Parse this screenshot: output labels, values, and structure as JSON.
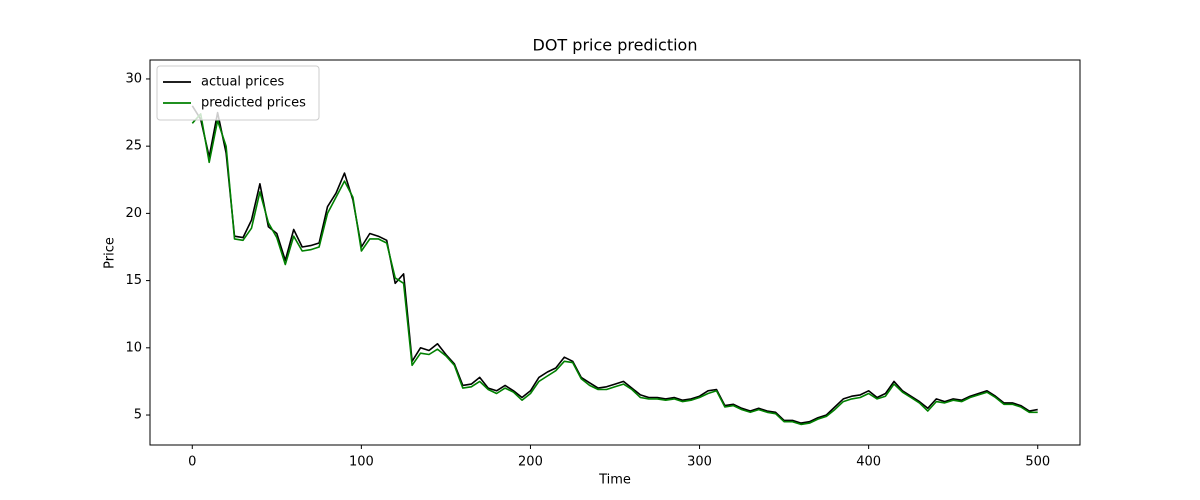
{
  "chart_data": {
    "type": "line",
    "title": "DOT price prediction",
    "x_label": "Time",
    "y_label": "Price",
    "x": [
      0,
      5,
      10,
      15,
      20,
      25,
      30,
      35,
      40,
      45,
      50,
      55,
      60,
      65,
      70,
      75,
      80,
      85,
      90,
      95,
      100,
      105,
      110,
      115,
      120,
      125,
      130,
      135,
      140,
      145,
      150,
      155,
      160,
      165,
      170,
      175,
      180,
      185,
      190,
      195,
      200,
      205,
      210,
      215,
      220,
      225,
      230,
      235,
      240,
      245,
      250,
      255,
      260,
      265,
      270,
      275,
      280,
      285,
      290,
      295,
      300,
      305,
      310,
      315,
      320,
      325,
      330,
      335,
      340,
      345,
      350,
      355,
      360,
      365,
      370,
      375,
      380,
      385,
      390,
      395,
      400,
      405,
      410,
      415,
      420,
      425,
      430,
      435,
      440,
      445,
      450,
      455,
      460,
      465,
      470,
      475,
      480,
      485,
      490,
      495,
      500
    ],
    "series": [
      {
        "name": "actual prices",
        "color": "#000000",
        "values": [
          28.0,
          27.0,
          24.2,
          27.5,
          24.5,
          18.3,
          18.2,
          19.5,
          22.2,
          19.0,
          18.5,
          16.5,
          18.8,
          17.5,
          17.6,
          17.8,
          20.5,
          21.5,
          23.0,
          21.0,
          17.5,
          18.5,
          18.3,
          18.0,
          14.8,
          15.5,
          9.0,
          10.0,
          9.8,
          10.3,
          9.5,
          8.8,
          7.2,
          7.3,
          7.8,
          7.0,
          6.8,
          7.2,
          6.8,
          6.3,
          6.8,
          7.8,
          8.2,
          8.5,
          9.3,
          9.0,
          7.8,
          7.4,
          7.0,
          7.1,
          7.3,
          7.5,
          7.0,
          6.5,
          6.3,
          6.3,
          6.2,
          6.3,
          6.1,
          6.2,
          6.4,
          6.8,
          6.9,
          5.7,
          5.8,
          5.5,
          5.3,
          5.5,
          5.3,
          5.2,
          4.6,
          4.6,
          4.4,
          4.5,
          4.8,
          5.0,
          5.6,
          6.2,
          6.4,
          6.5,
          6.8,
          6.3,
          6.6,
          7.5,
          6.8,
          6.4,
          6.0,
          5.5,
          6.2,
          6.0,
          6.2,
          6.1,
          6.4,
          6.6,
          6.8,
          6.4,
          5.9,
          5.9,
          5.7,
          5.3,
          5.4
        ]
      },
      {
        "name": "predicted prices",
        "color": "#008000",
        "values": [
          26.7,
          27.4,
          23.8,
          26.9,
          25.0,
          18.1,
          18.0,
          18.9,
          21.6,
          19.3,
          18.2,
          16.2,
          18.3,
          17.2,
          17.3,
          17.5,
          20.0,
          21.2,
          22.4,
          21.2,
          17.2,
          18.1,
          18.1,
          17.8,
          15.2,
          14.8,
          8.7,
          9.6,
          9.5,
          9.9,
          9.4,
          8.7,
          7.0,
          7.1,
          7.5,
          6.9,
          6.6,
          7.0,
          6.7,
          6.1,
          6.6,
          7.5,
          7.9,
          8.3,
          9.0,
          8.9,
          7.7,
          7.2,
          6.9,
          6.9,
          7.1,
          7.3,
          6.9,
          6.3,
          6.2,
          6.2,
          6.1,
          6.2,
          6.0,
          6.1,
          6.3,
          6.6,
          6.8,
          5.6,
          5.7,
          5.4,
          5.2,
          5.4,
          5.2,
          5.1,
          4.5,
          4.5,
          4.3,
          4.4,
          4.7,
          4.9,
          5.4,
          6.0,
          6.2,
          6.3,
          6.6,
          6.2,
          6.4,
          7.3,
          6.7,
          6.3,
          5.9,
          5.3,
          6.0,
          5.9,
          6.1,
          6.0,
          6.3,
          6.5,
          6.7,
          6.3,
          5.8,
          5.8,
          5.6,
          5.2,
          5.2
        ]
      }
    ],
    "xlim": [
      -25,
      525
    ],
    "ylim": [
      2.77,
      31.41
    ],
    "xticks": [
      0,
      100,
      200,
      300,
      400,
      500
    ],
    "yticks": [
      5,
      10,
      15,
      20,
      25,
      30
    ],
    "legend": "upper left"
  }
}
